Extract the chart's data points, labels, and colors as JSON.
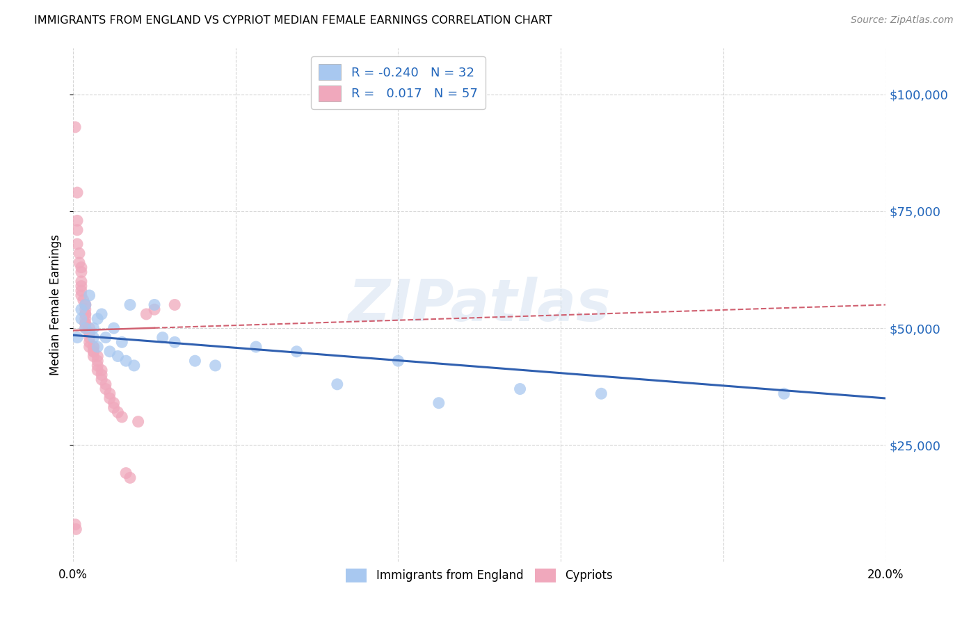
{
  "title": "IMMIGRANTS FROM ENGLAND VS CYPRIOT MEDIAN FEMALE EARNINGS CORRELATION CHART",
  "source": "Source: ZipAtlas.com",
  "ylabel": "Median Female Earnings",
  "xlim": [
    0,
    0.2
  ],
  "ylim": [
    0,
    110000
  ],
  "yticks": [
    25000,
    50000,
    75000,
    100000
  ],
  "ytick_labels": [
    "$25,000",
    "$50,000",
    "$75,000",
    "$100,000"
  ],
  "xticks": [
    0.0,
    0.04,
    0.08,
    0.12,
    0.16,
    0.2
  ],
  "xtick_labels": [
    "0.0%",
    "",
    "",
    "",
    "",
    "20.0%"
  ],
  "watermark": "ZIPatlas",
  "legend_r_blue": "R = -0.240",
  "legend_n_blue": "N = 32",
  "legend_r_pink": "R =  0.017",
  "legend_n_pink": "N = 57",
  "blue_color": "#A8C8F0",
  "pink_color": "#F0A8BC",
  "trend_blue": "#3060B0",
  "trend_pink": "#D06070",
  "blue_scatter_x": [
    0.001,
    0.002,
    0.002,
    0.003,
    0.003,
    0.004,
    0.005,
    0.005,
    0.006,
    0.006,
    0.007,
    0.008,
    0.009,
    0.01,
    0.011,
    0.012,
    0.013,
    0.014,
    0.015,
    0.02,
    0.022,
    0.025,
    0.03,
    0.035,
    0.045,
    0.055,
    0.065,
    0.08,
    0.09,
    0.11,
    0.13,
    0.175
  ],
  "blue_scatter_y": [
    48000,
    54000,
    52000,
    50000,
    55000,
    57000,
    50000,
    48000,
    52000,
    46000,
    53000,
    48000,
    45000,
    50000,
    44000,
    47000,
    43000,
    55000,
    42000,
    55000,
    48000,
    47000,
    43000,
    42000,
    46000,
    45000,
    38000,
    43000,
    34000,
    37000,
    36000,
    36000
  ],
  "pink_scatter_x": [
    0.0005,
    0.0005,
    0.0007,
    0.001,
    0.001,
    0.001,
    0.001,
    0.0015,
    0.0015,
    0.002,
    0.002,
    0.002,
    0.002,
    0.002,
    0.002,
    0.0025,
    0.003,
    0.003,
    0.003,
    0.003,
    0.003,
    0.003,
    0.003,
    0.003,
    0.003,
    0.004,
    0.004,
    0.004,
    0.004,
    0.004,
    0.004,
    0.005,
    0.005,
    0.005,
    0.005,
    0.005,
    0.006,
    0.006,
    0.006,
    0.006,
    0.007,
    0.007,
    0.007,
    0.008,
    0.008,
    0.009,
    0.009,
    0.01,
    0.01,
    0.011,
    0.012,
    0.013,
    0.014,
    0.016,
    0.018,
    0.02,
    0.025
  ],
  "pink_scatter_y": [
    93000,
    8000,
    7000,
    79000,
    73000,
    71000,
    68000,
    66000,
    64000,
    63000,
    62000,
    60000,
    59000,
    58000,
    57000,
    56000,
    55000,
    55000,
    54000,
    53000,
    53000,
    52000,
    51000,
    51000,
    50000,
    50000,
    49000,
    49000,
    48000,
    47000,
    46000,
    46000,
    46000,
    45000,
    45000,
    44000,
    44000,
    43000,
    42000,
    41000,
    41000,
    40000,
    39000,
    38000,
    37000,
    36000,
    35000,
    34000,
    33000,
    32000,
    31000,
    19000,
    18000,
    30000,
    53000,
    54000,
    55000
  ]
}
